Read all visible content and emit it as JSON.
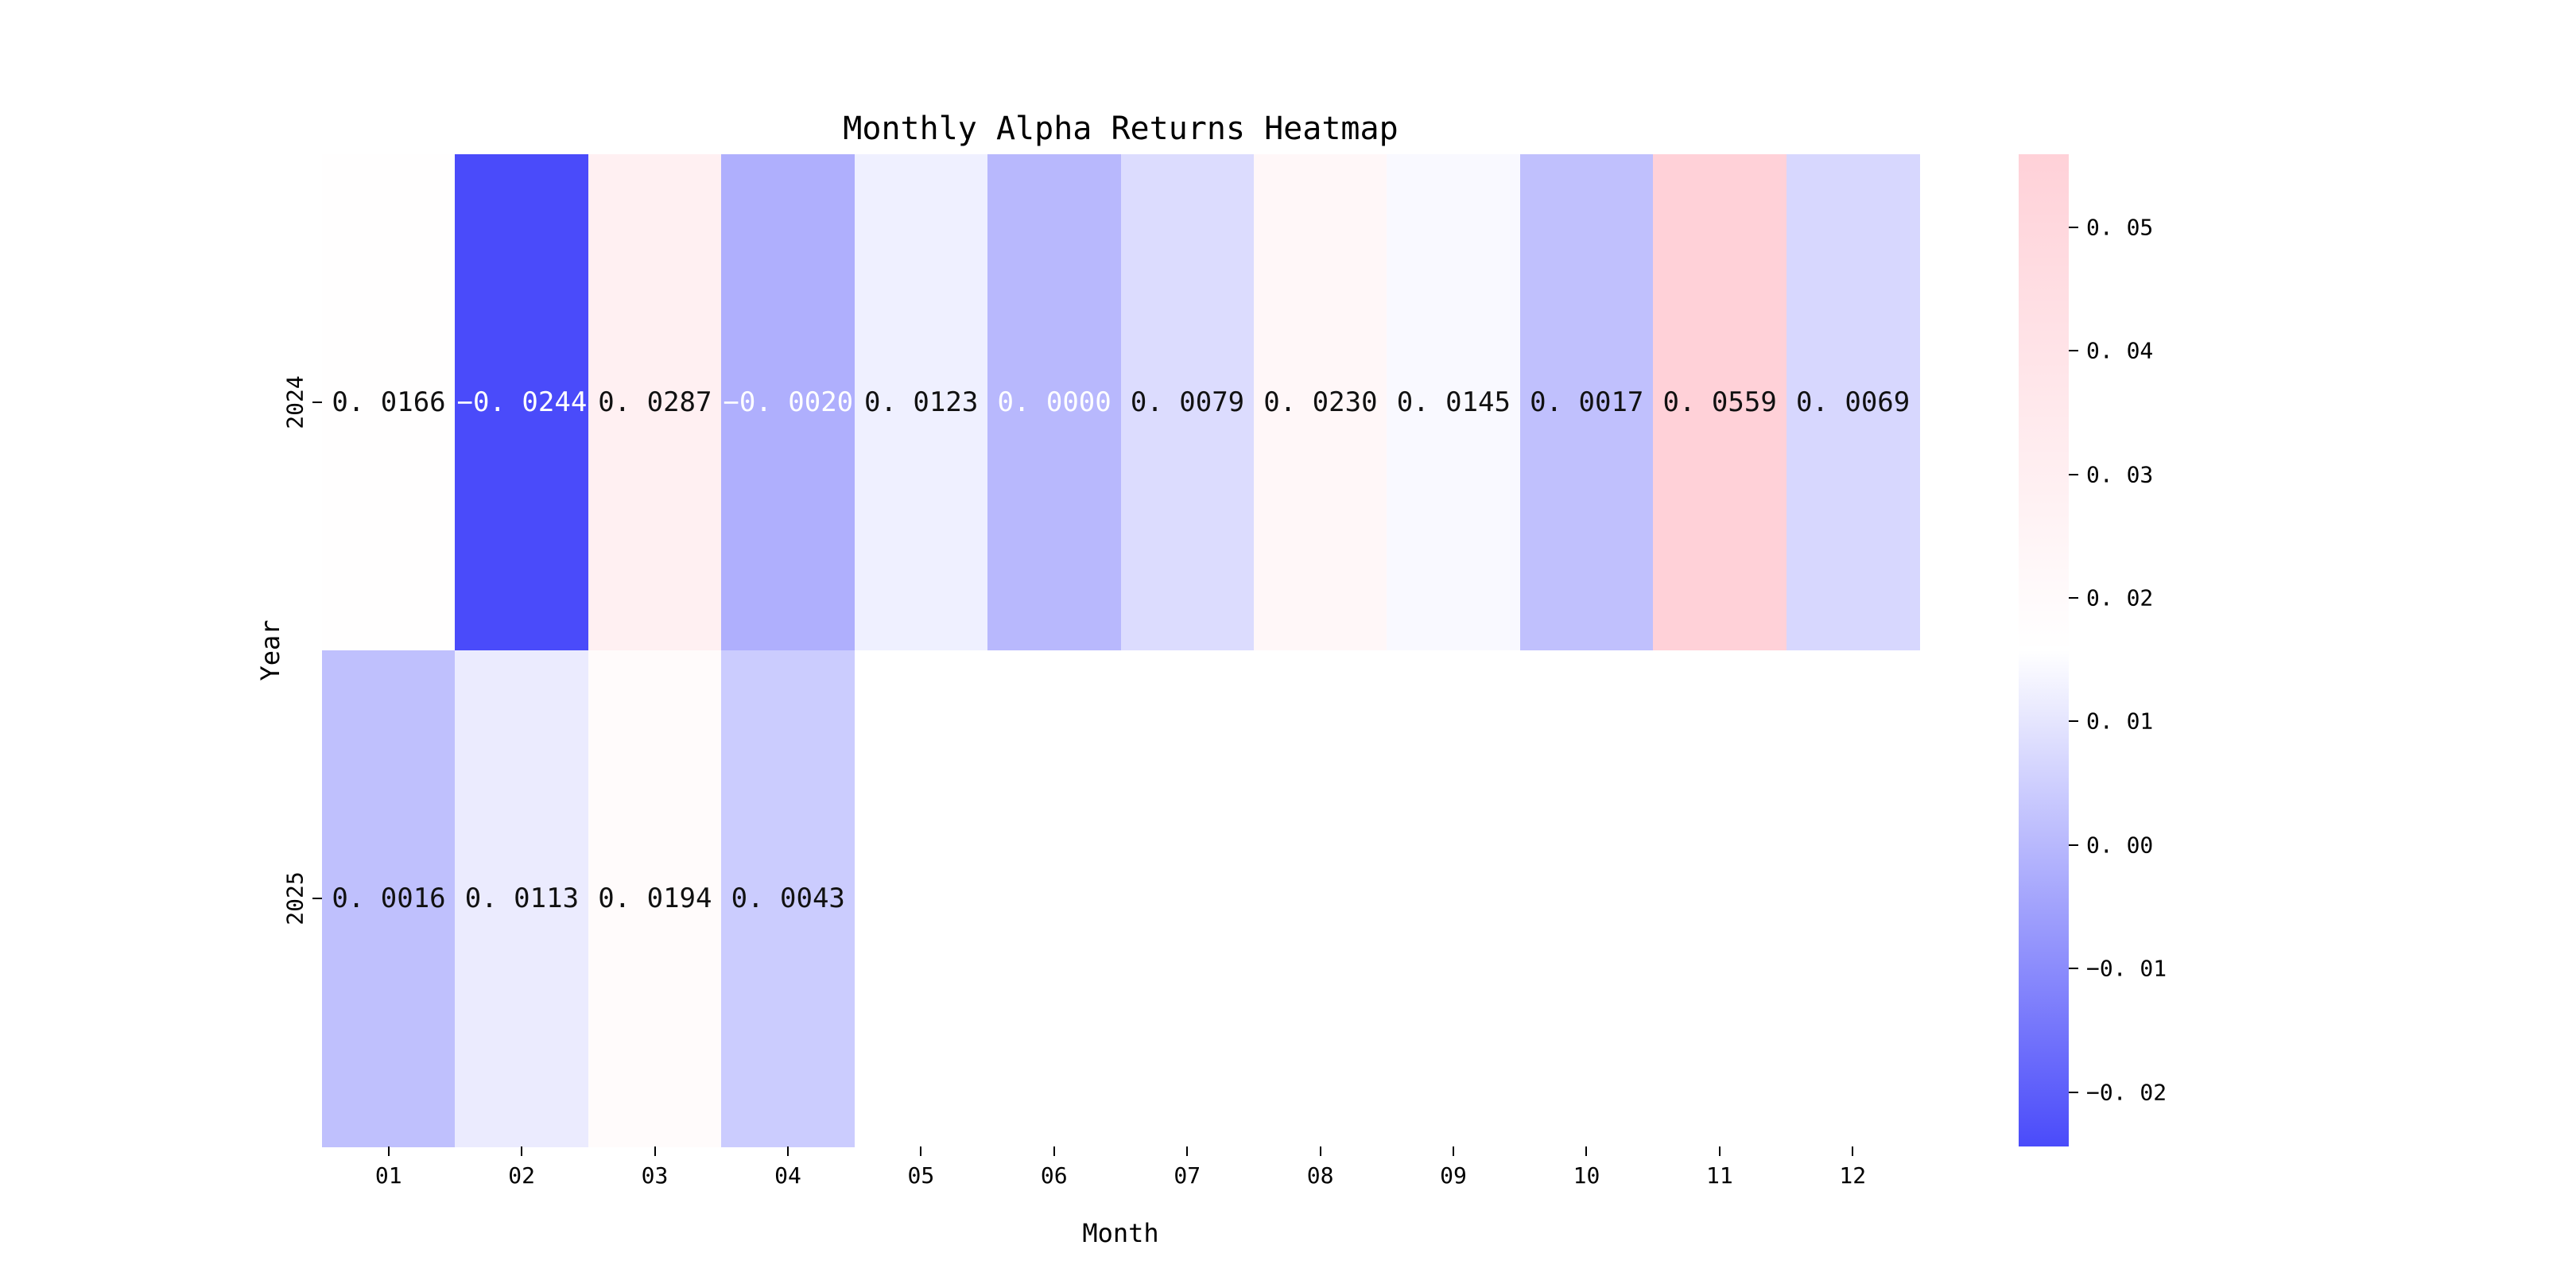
{
  "title": "Monthly Alpha Returns Heatmap",
  "colors": {
    "background": "#ffffff",
    "cmap_low_blue": "#4a4bfa",
    "cmap_mid_white": "#ffffff",
    "cmap_high_pink": "#ffd1d8",
    "annotation_dark": "#111111",
    "annotation_light": "#ffffff",
    "tick_color": "#000000",
    "masked_cell": "#ffffff"
  },
  "chart_data": {
    "type": "heatmap",
    "title": "Monthly Alpha Returns Heatmap",
    "xlabel": "Month",
    "ylabel": "Year",
    "x_categories": [
      "01",
      "02",
      "03",
      "04",
      "05",
      "06",
      "07",
      "08",
      "09",
      "10",
      "11",
      "12"
    ],
    "y_categories": [
      "2024",
      "2025"
    ],
    "vmin": -0.0244,
    "vmax": 0.0559,
    "colormap": "blue-white-pink diverging, white at midpoint of range",
    "grid": false,
    "legend_position": "colorbar-right",
    "colorbar_ticks": [
      0.05,
      0.04,
      0.03,
      0.02,
      0.01,
      0.0,
      -0.01,
      -0.02
    ],
    "colorbar_tick_labels": [
      "0. 05",
      "0. 04",
      "0. 03",
      "0. 02",
      "0. 01",
      "0. 00",
      "−0. 01",
      "−0. 02"
    ],
    "rows": [
      {
        "year": "2024",
        "values": [
          0.0166,
          -0.0244,
          0.0287,
          -0.002,
          0.0123,
          0.0,
          0.0079,
          0.023,
          0.0145,
          0.0017,
          0.0559,
          0.0069
        ],
        "labels": [
          "0. 0166",
          "−0. 0244",
          "0. 0287",
          "−0. 0020",
          "0. 0123",
          "0. 0000",
          "0. 0079",
          "0. 0230",
          "0. 0145",
          "0. 0017",
          "0. 0559",
          "0. 0069"
        ],
        "text_colors": [
          "dark",
          "light",
          "dark",
          "light",
          "dark",
          "light",
          "dark",
          "dark",
          "dark",
          "dark",
          "dark",
          "dark"
        ]
      },
      {
        "year": "2025",
        "values": [
          0.0016,
          0.0113,
          0.0194,
          0.0043,
          null,
          null,
          null,
          null,
          null,
          null,
          null,
          null
        ],
        "labels": [
          "0. 0016",
          "0. 0113",
          "0. 0194",
          "0. 0043",
          "",
          "",
          "",
          "",
          "",
          "",
          "",
          ""
        ],
        "text_colors": [
          "dark",
          "dark",
          "dark",
          "dark",
          "",
          "",
          "",
          "",
          "",
          "",
          "",
          ""
        ]
      }
    ]
  }
}
